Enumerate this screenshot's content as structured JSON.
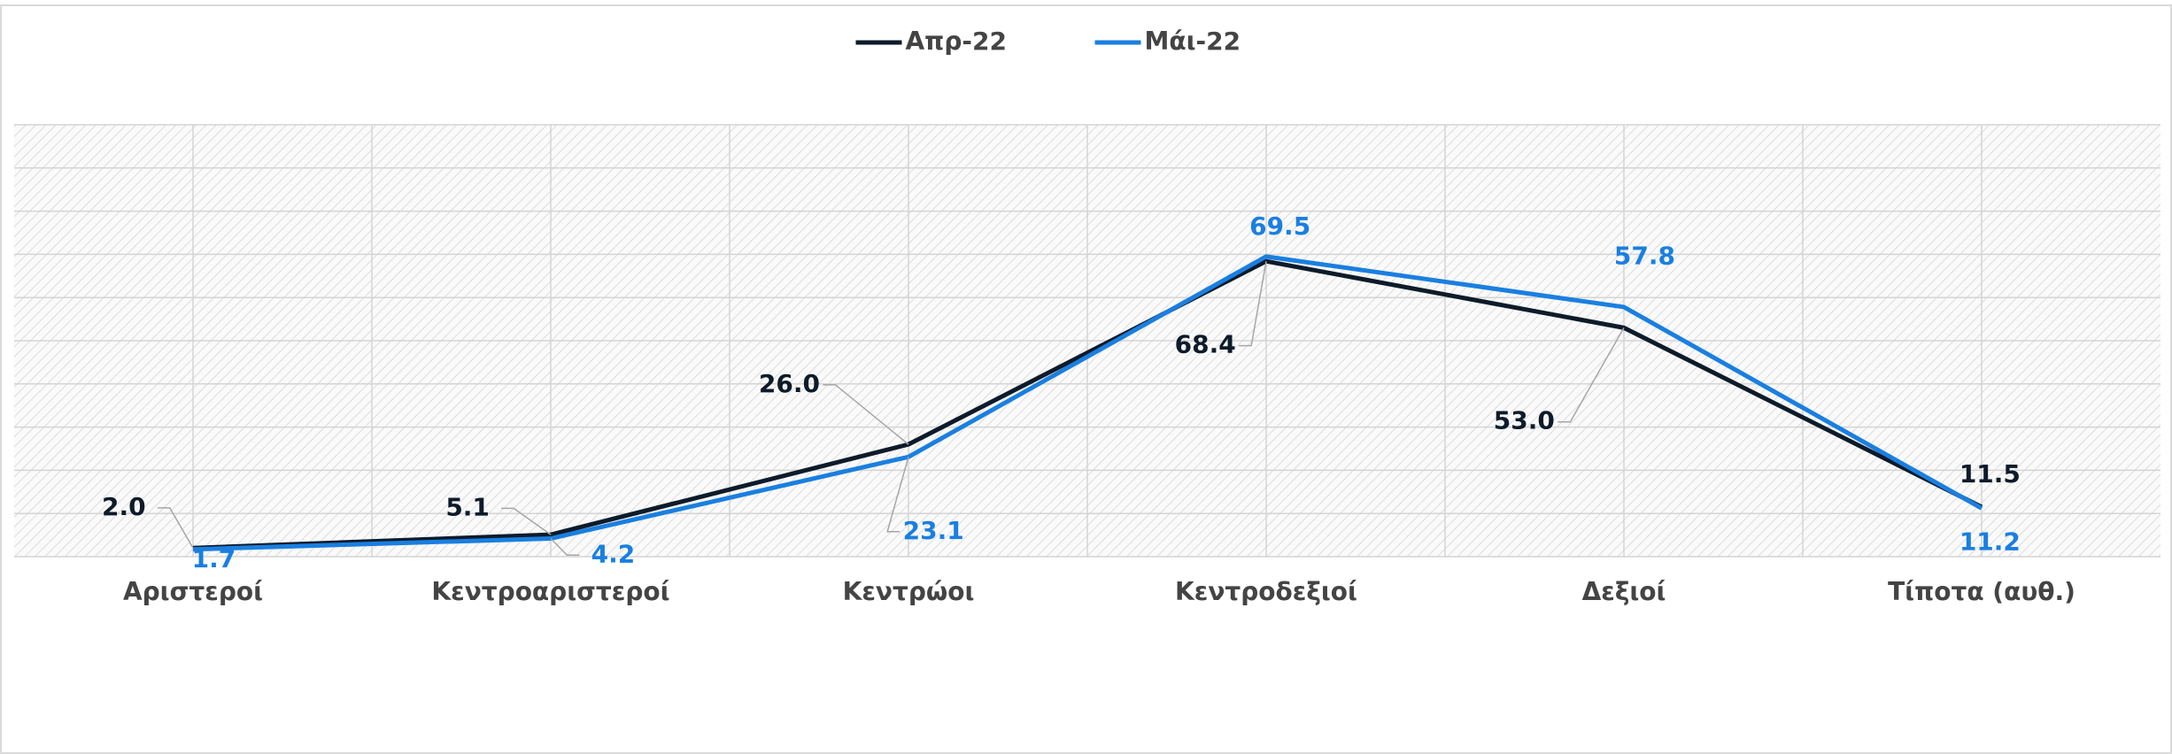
{
  "chart_data": {
    "type": "line",
    "categories": [
      "Αριστεροί",
      "Κεντροαριστεροί",
      "Κεντρώοι",
      "Κεντροδεξιοί",
      "Δεξιοί",
      "Τίποτα (αυθ.)"
    ],
    "series": [
      {
        "name": "Απρ-22",
        "color": "#0d1b2a",
        "values": [
          2.0,
          5.1,
          26.0,
          68.4,
          53.0,
          11.5
        ],
        "value_labels": [
          "2.0",
          "5.1",
          "26.0",
          "68.4",
          "53.0",
          "11.5"
        ]
      },
      {
        "name": "Μάι-22",
        "color": "#1a7fe0",
        "values": [
          1.7,
          4.2,
          23.1,
          69.5,
          57.8,
          11.2
        ],
        "value_labels": [
          "1.7",
          "4.2",
          "23.1",
          "69.5",
          "57.8",
          "11.2"
        ]
      }
    ],
    "ylim": [
      0,
      100
    ],
    "yticks": [
      0,
      10,
      20,
      30,
      40,
      50,
      60,
      70,
      80,
      90,
      100
    ],
    "grid": true,
    "legend": "top"
  }
}
